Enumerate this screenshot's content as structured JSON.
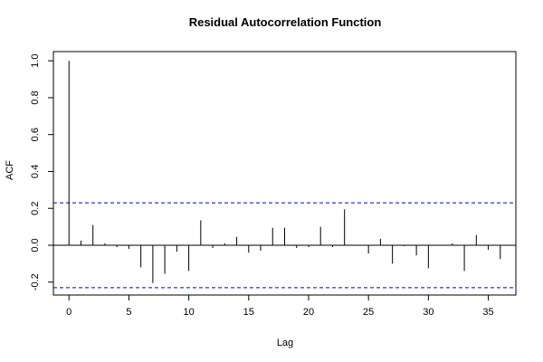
{
  "chart_data": {
    "type": "bar",
    "title": "Residual Autocorrelation Function",
    "xlabel": "Lag",
    "ylabel": "ACF",
    "xlim": [
      -1.3,
      37.3
    ],
    "ylim": [
      -0.27,
      1.05
    ],
    "x_ticks": [
      0,
      5,
      10,
      15,
      20,
      25,
      30,
      35
    ],
    "y_ticks": [
      -0.2,
      0.0,
      0.2,
      0.4,
      0.6,
      0.8,
      1.0
    ],
    "y_tick_labels": [
      "-0.2",
      "0.0",
      "0.2",
      "0.4",
      "0.6",
      "0.8",
      "1.0"
    ],
    "grid": false,
    "confidence_bounds": [
      0.23,
      -0.23
    ],
    "series": [
      {
        "x": [
          0,
          1,
          2,
          3,
          4,
          5,
          6,
          7,
          8,
          9,
          10,
          11,
          12,
          13,
          14,
          15,
          16,
          17,
          18,
          19,
          20,
          21,
          22,
          23,
          24,
          25,
          26,
          27,
          28,
          29,
          30,
          31,
          32,
          33,
          34,
          35,
          36
        ],
        "values": [
          1.0,
          0.025,
          0.11,
          0.01,
          -0.01,
          -0.02,
          -0.12,
          -0.205,
          -0.155,
          -0.035,
          -0.14,
          0.135,
          -0.015,
          0.01,
          0.045,
          -0.04,
          -0.03,
          0.095,
          0.095,
          -0.015,
          -0.01,
          0.1,
          -0.01,
          0.195,
          0.0,
          -0.045,
          0.035,
          -0.1,
          -0.005,
          -0.055,
          -0.125,
          0.0,
          0.01,
          -0.14,
          0.055,
          -0.025,
          -0.075
        ]
      }
    ],
    "colors": {
      "bar": "#000000",
      "bounds": "#0000cc",
      "frame": "#000000"
    }
  }
}
